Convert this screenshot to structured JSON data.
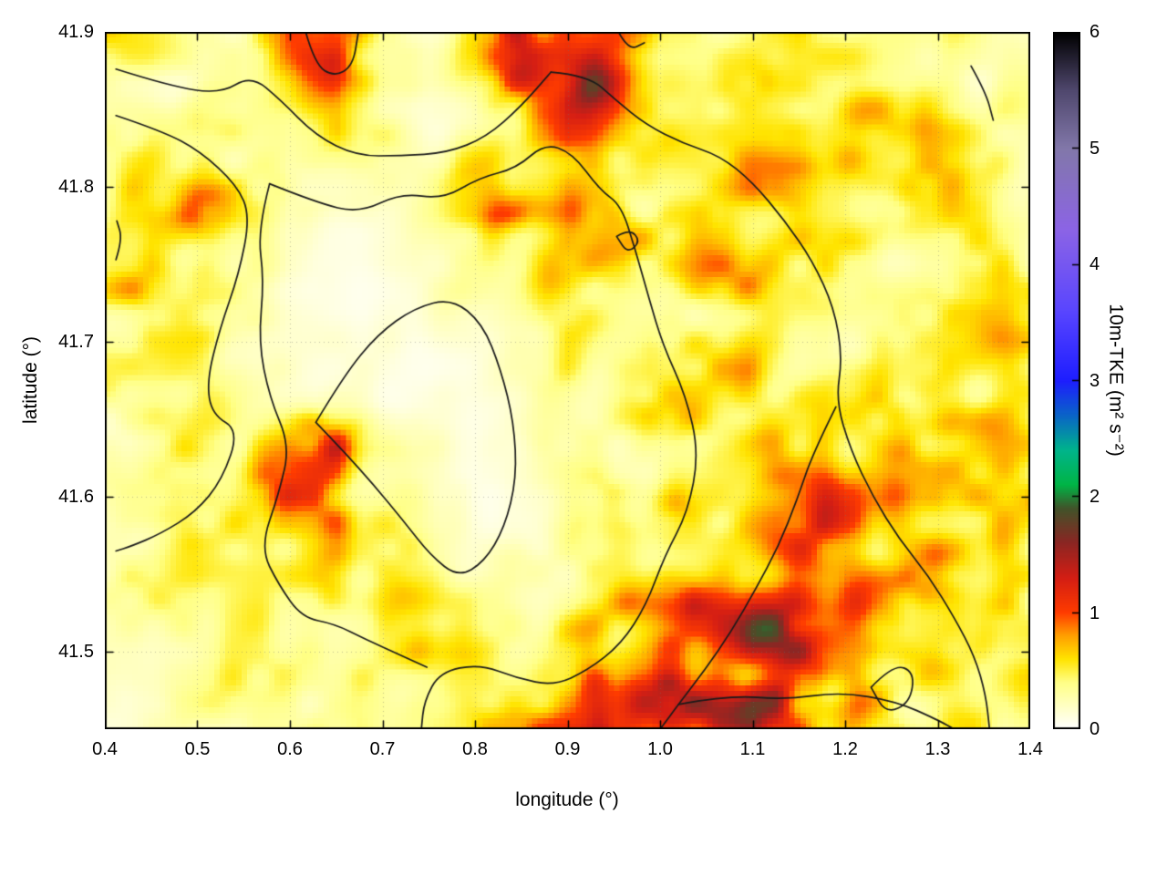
{
  "figure": {
    "background": "#ffffff"
  },
  "chart_data": {
    "type": "heatmap",
    "title": "",
    "xlabel": "longitude (°)",
    "ylabel": "latitude (°)",
    "xlim": [
      0.4,
      1.4
    ],
    "ylim": [
      41.45,
      41.9
    ],
    "x_ticks": [
      "0.4",
      "0.5",
      "0.6",
      "0.7",
      "0.8",
      "0.9",
      "1.0",
      "1.1",
      "1.2",
      "1.3",
      "1.4"
    ],
    "y_ticks": [
      "41.5",
      "41.6",
      "41.7",
      "41.8",
      "41.9"
    ],
    "grid": "dotted",
    "contour_color": "#1a1a1a",
    "colorbar": {
      "label": "10m-TKE (m² s⁻²)",
      "min": 0,
      "max": 6,
      "ticks": [
        "0",
        "1",
        "2",
        "3",
        "4",
        "5",
        "6"
      ],
      "palette": [
        [
          0.0,
          "#ffffff"
        ],
        [
          0.4,
          "#ffff86"
        ],
        [
          0.6,
          "#ffe400"
        ],
        [
          0.8,
          "#ffa000"
        ],
        [
          1.0,
          "#ff3c00"
        ],
        [
          1.3,
          "#d41e14"
        ],
        [
          1.6,
          "#8c2623"
        ],
        [
          1.9,
          "#41542a"
        ],
        [
          2.1,
          "#00b446"
        ],
        [
          2.4,
          "#00b48c"
        ],
        [
          2.7,
          "#0a64c8"
        ],
        [
          3.0,
          "#1e1eff"
        ],
        [
          3.6,
          "#5a46ff"
        ],
        [
          4.3,
          "#8c64e6"
        ],
        [
          5.0,
          "#8278aa"
        ],
        [
          5.5,
          "#50486e"
        ],
        [
          6.0,
          "#000000"
        ]
      ]
    },
    "grid_field": {
      "lon_start": 0.4,
      "lon_step": 0.05,
      "cols": 21,
      "lat_start": 41.9,
      "lat_step": -0.03,
      "rows": 16,
      "values": [
        [
          0.35,
          0.35,
          0.3,
          0.3,
          0.8,
          0.9,
          0.4,
          0.3,
          0.5,
          1.2,
          1.4,
          1.1,
          0.5,
          0.4,
          0.5,
          0.6,
          0.4,
          0.35,
          0.3,
          0.3,
          0.25
        ],
        [
          0.3,
          0.35,
          0.3,
          0.3,
          0.6,
          0.85,
          0.4,
          0.25,
          0.35,
          0.9,
          1.3,
          1.0,
          0.45,
          0.4,
          0.55,
          0.5,
          0.45,
          0.4,
          0.35,
          0.3,
          0.3
        ],
        [
          0.25,
          0.4,
          0.5,
          0.35,
          0.3,
          0.5,
          0.3,
          0.2,
          0.3,
          0.5,
          1.0,
          0.8,
          0.5,
          0.5,
          0.6,
          0.55,
          0.5,
          0.55,
          0.5,
          0.4,
          0.35
        ],
        [
          0.3,
          0.55,
          0.7,
          0.5,
          0.2,
          0.2,
          0.2,
          0.3,
          0.45,
          0.6,
          0.7,
          0.5,
          0.4,
          0.5,
          0.6,
          0.6,
          0.55,
          0.5,
          0.55,
          0.5,
          0.4
        ],
        [
          0.35,
          0.7,
          0.9,
          0.5,
          0.2,
          0.15,
          0.15,
          0.25,
          0.4,
          0.9,
          0.8,
          0.6,
          0.55,
          0.6,
          0.7,
          0.65,
          0.5,
          0.4,
          0.45,
          0.5,
          0.45
        ],
        [
          0.4,
          0.6,
          0.6,
          0.35,
          0.15,
          0.1,
          0.15,
          0.2,
          0.3,
          0.5,
          0.6,
          0.5,
          0.5,
          0.65,
          0.75,
          0.6,
          0.45,
          0.35,
          0.4,
          0.55,
          0.5
        ],
        [
          0.45,
          0.5,
          0.4,
          0.25,
          0.15,
          0.1,
          0.1,
          0.15,
          0.2,
          0.3,
          0.45,
          0.45,
          0.45,
          0.6,
          0.65,
          0.55,
          0.45,
          0.4,
          0.5,
          0.6,
          0.55
        ],
        [
          0.5,
          0.45,
          0.35,
          0.3,
          0.2,
          0.15,
          0.1,
          0.1,
          0.15,
          0.2,
          0.35,
          0.4,
          0.45,
          0.55,
          0.6,
          0.5,
          0.4,
          0.45,
          0.6,
          0.65,
          0.5
        ],
        [
          0.4,
          0.4,
          0.35,
          0.35,
          0.3,
          0.25,
          0.15,
          0.1,
          0.1,
          0.15,
          0.3,
          0.4,
          0.5,
          0.6,
          0.55,
          0.6,
          0.5,
          0.55,
          0.7,
          0.6,
          0.45
        ],
        [
          0.35,
          0.4,
          0.45,
          0.45,
          0.7,
          0.9,
          0.4,
          0.2,
          0.1,
          0.15,
          0.3,
          0.4,
          0.5,
          0.65,
          0.7,
          0.65,
          0.6,
          0.8,
          0.9,
          0.7,
          0.5
        ],
        [
          0.3,
          0.35,
          0.4,
          0.5,
          0.8,
          0.85,
          0.4,
          0.25,
          0.1,
          0.15,
          0.25,
          0.4,
          0.5,
          0.6,
          0.75,
          0.8,
          0.8,
          1.0,
          1.1,
          0.8,
          0.6
        ],
        [
          0.3,
          0.35,
          0.6,
          0.45,
          0.45,
          0.5,
          0.45,
          0.4,
          0.25,
          0.25,
          0.35,
          0.45,
          0.55,
          0.7,
          0.9,
          1.1,
          1.2,
          1.0,
          0.9,
          0.7,
          0.6
        ],
        [
          0.25,
          0.3,
          0.4,
          0.4,
          0.4,
          0.45,
          0.5,
          0.45,
          0.35,
          0.3,
          0.4,
          0.55,
          0.6,
          0.8,
          1.1,
          1.3,
          1.2,
          0.9,
          0.7,
          0.6,
          0.5
        ],
        [
          0.25,
          0.3,
          0.35,
          0.35,
          0.35,
          0.4,
          0.45,
          0.45,
          0.4,
          0.45,
          0.55,
          0.7,
          0.8,
          1.0,
          1.3,
          1.2,
          0.9,
          0.7,
          0.55,
          0.5,
          0.45
        ],
        [
          0.2,
          0.25,
          0.3,
          0.35,
          0.4,
          0.4,
          0.4,
          0.4,
          0.45,
          0.5,
          0.7,
          0.9,
          1.1,
          1.2,
          1.4,
          1.0,
          0.8,
          0.6,
          0.5,
          0.45,
          0.4
        ],
        [
          0.15,
          0.2,
          0.25,
          0.3,
          0.35,
          0.35,
          0.35,
          0.4,
          0.45,
          0.5,
          0.8,
          1.0,
          1.0,
          0.9,
          1.0,
          0.8,
          0.6,
          0.5,
          0.45,
          0.4,
          0.35
        ]
      ]
    },
    "contours": [
      {
        "points": [
          [
            0.412,
            41.876
          ],
          [
            0.47,
            41.865
          ],
          [
            0.525,
            41.86
          ],
          [
            0.558,
            41.872
          ],
          [
            0.59,
            41.856
          ],
          [
            0.628,
            41.833
          ],
          [
            0.672,
            41.82
          ],
          [
            0.72,
            41.82
          ],
          [
            0.77,
            41.822
          ],
          [
            0.812,
            41.832
          ],
          [
            0.85,
            41.852
          ],
          [
            0.882,
            41.874
          ]
        ]
      },
      {
        "points": [
          [
            0.882,
            41.874
          ],
          [
            0.922,
            41.872
          ],
          [
            0.952,
            41.856
          ],
          [
            0.985,
            41.84
          ],
          [
            1.025,
            41.828
          ],
          [
            1.065,
            41.82
          ],
          [
            1.1,
            41.803
          ],
          [
            1.135,
            41.778
          ],
          [
            1.165,
            41.752
          ],
          [
            1.188,
            41.722
          ],
          [
            1.197,
            41.69
          ],
          [
            1.19,
            41.662
          ],
          [
            1.206,
            41.63
          ],
          [
            1.23,
            41.6
          ],
          [
            1.258,
            41.573
          ],
          [
            1.29,
            41.549
          ],
          [
            1.318,
            41.522
          ],
          [
            1.34,
            41.497
          ],
          [
            1.352,
            41.472
          ],
          [
            1.356,
            41.45
          ]
        ]
      },
      {
        "points": [
          [
            0.412,
            41.846
          ],
          [
            0.462,
            41.836
          ],
          [
            0.503,
            41.823
          ],
          [
            0.543,
            41.801
          ],
          [
            0.557,
            41.781
          ],
          [
            0.545,
            41.744
          ],
          [
            0.524,
            41.708
          ],
          [
            0.51,
            41.674
          ],
          [
            0.516,
            41.653
          ],
          [
            0.545,
            41.643
          ],
          [
            0.527,
            41.611
          ],
          [
            0.498,
            41.59
          ],
          [
            0.46,
            41.576
          ],
          [
            0.428,
            41.568
          ],
          [
            0.412,
            41.565
          ]
        ]
      },
      {
        "points": [
          [
            0.578,
            41.802
          ],
          [
            0.628,
            41.79
          ],
          [
            0.675,
            41.783
          ],
          [
            0.72,
            41.796
          ],
          [
            0.765,
            41.792
          ],
          [
            0.805,
            41.806
          ],
          [
            0.845,
            41.812
          ],
          [
            0.875,
            41.828
          ],
          [
            0.905,
            41.822
          ],
          [
            0.935,
            41.798
          ],
          [
            0.958,
            41.788
          ],
          [
            0.973,
            41.76
          ],
          [
            0.988,
            41.728
          ],
          [
            1.003,
            41.698
          ],
          [
            1.028,
            41.665
          ],
          [
            1.042,
            41.628
          ],
          [
            1.03,
            41.59
          ],
          [
            1.005,
            41.562
          ],
          [
            0.985,
            41.53
          ],
          [
            0.958,
            41.505
          ],
          [
            0.922,
            41.488
          ],
          [
            0.885,
            41.478
          ],
          [
            0.845,
            41.483
          ],
          [
            0.805,
            41.492
          ],
          [
            0.762,
            41.487
          ],
          [
            0.745,
            41.468
          ],
          [
            0.742,
            41.45
          ]
        ]
      },
      {
        "points": [
          [
            0.578,
            41.802
          ],
          [
            0.565,
            41.772
          ],
          [
            0.572,
            41.74
          ],
          [
            0.566,
            41.7
          ],
          [
            0.578,
            41.664
          ],
          [
            0.6,
            41.633
          ],
          [
            0.588,
            41.602
          ],
          [
            0.568,
            41.567
          ],
          [
            0.588,
            41.543
          ],
          [
            0.613,
            41.522
          ],
          [
            0.648,
            41.518
          ],
          [
            0.682,
            41.508
          ],
          [
            0.722,
            41.497
          ],
          [
            0.748,
            41.49
          ]
        ]
      },
      {
        "points": [
          [
            0.628,
            41.648
          ],
          [
            0.658,
            41.678
          ],
          [
            0.695,
            41.705
          ],
          [
            0.735,
            41.722
          ],
          [
            0.775,
            41.728
          ],
          [
            0.808,
            41.712
          ],
          [
            0.828,
            41.682
          ],
          [
            0.842,
            41.648
          ],
          [
            0.845,
            41.612
          ],
          [
            0.832,
            41.58
          ],
          [
            0.81,
            41.558
          ],
          [
            0.782,
            41.548
          ],
          [
            0.752,
            41.562
          ],
          [
            0.722,
            41.585
          ],
          [
            0.69,
            41.608
          ],
          [
            0.66,
            41.628
          ],
          [
            0.628,
            41.648
          ]
        ]
      },
      {
        "points": [
          [
            1.19,
            41.658
          ],
          [
            1.165,
            41.628
          ],
          [
            1.148,
            41.598
          ],
          [
            1.128,
            41.568
          ],
          [
            1.103,
            41.54
          ],
          [
            1.077,
            41.513
          ],
          [
            1.048,
            41.488
          ],
          [
            1.02,
            41.466
          ],
          [
            1.0,
            41.45
          ]
        ]
      },
      {
        "points": [
          [
            1.02,
            41.466
          ],
          [
            1.075,
            41.472
          ],
          [
            1.135,
            41.469
          ],
          [
            1.195,
            41.474
          ],
          [
            1.255,
            41.468
          ],
          [
            1.3,
            41.456
          ],
          [
            1.318,
            41.45
          ]
        ]
      },
      {
        "points": [
          [
            1.228,
            41.477
          ],
          [
            1.252,
            41.492
          ],
          [
            1.275,
            41.487
          ],
          [
            1.27,
            41.467
          ],
          [
            1.244,
            41.46
          ],
          [
            1.228,
            41.477
          ]
        ]
      },
      {
        "points": [
          [
            0.617,
            41.9
          ],
          [
            0.627,
            41.879
          ],
          [
            0.648,
            41.871
          ],
          [
            0.668,
            41.878
          ],
          [
            0.674,
            41.9
          ]
        ]
      },
      {
        "points": [
          [
            0.955,
            41.9
          ],
          [
            0.966,
            41.888
          ],
          [
            0.983,
            41.893
          ]
        ]
      },
      {
        "points": [
          [
            1.336,
            41.878
          ],
          [
            1.352,
            41.861
          ],
          [
            1.36,
            41.843
          ]
        ]
      },
      {
        "points": [
          [
            0.953,
            41.768
          ],
          [
            0.967,
            41.773
          ],
          [
            0.979,
            41.765
          ],
          [
            0.965,
            41.757
          ],
          [
            0.953,
            41.768
          ]
        ]
      },
      {
        "points": [
          [
            0.412,
            41.753
          ],
          [
            0.419,
            41.766
          ],
          [
            0.413,
            41.778
          ]
        ]
      }
    ]
  }
}
